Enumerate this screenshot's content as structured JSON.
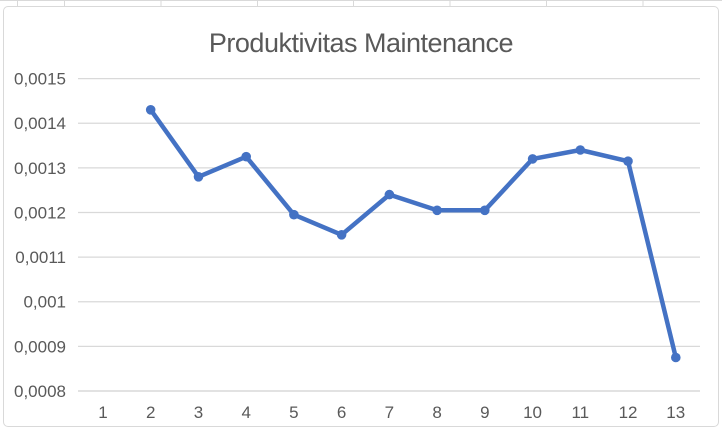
{
  "chart": {
    "title": "Produktivitas Maintenance"
  },
  "chart_data": {
    "type": "line",
    "title": "Produktivitas Maintenance",
    "xlabel": "",
    "ylabel": "",
    "x_categories": [
      1,
      2,
      3,
      4,
      5,
      6,
      7,
      8,
      9,
      10,
      11,
      12,
      13
    ],
    "x_tick_labels": [
      "1",
      "2",
      "3",
      "4",
      "5",
      "6",
      "7",
      "8",
      "9",
      "10",
      "11",
      "12",
      "13"
    ],
    "series": [
      {
        "x": [
          2,
          3,
          4,
          5,
          6,
          7,
          8,
          9,
          10,
          11,
          12,
          13
        ],
        "values": [
          0.00143,
          0.00128,
          0.001325,
          0.001195,
          0.00115,
          0.00124,
          0.001205,
          0.001205,
          0.00132,
          0.00134,
          0.001315,
          0.000875
        ],
        "color": "#4472C4",
        "marker": "circle"
      }
    ],
    "ylim": [
      0.0008,
      0.0015
    ],
    "y_ticks": [
      0.0008,
      0.0009,
      0.001,
      0.0011,
      0.0012,
      0.0013,
      0.0014,
      0.0015
    ],
    "y_tick_labels": [
      "0,0008",
      "0,0009",
      "0,001",
      "0,0011",
      "0,0012",
      "0,0013",
      "0,0014",
      "0,0015"
    ],
    "decimal_separator": ",",
    "grid": "horizontal",
    "legend": "none"
  },
  "colors": {
    "series_line": "#4472C4",
    "marker": "#4472C4",
    "gridline": "#D9D9D9",
    "axis_line": "#D0D0D0",
    "tick_text": "#595959",
    "title_text": "#595959",
    "chart_border": "#D9D9D9",
    "spreadsheet_gridline": "#D9D9D9",
    "background": "#FFFFFF"
  }
}
